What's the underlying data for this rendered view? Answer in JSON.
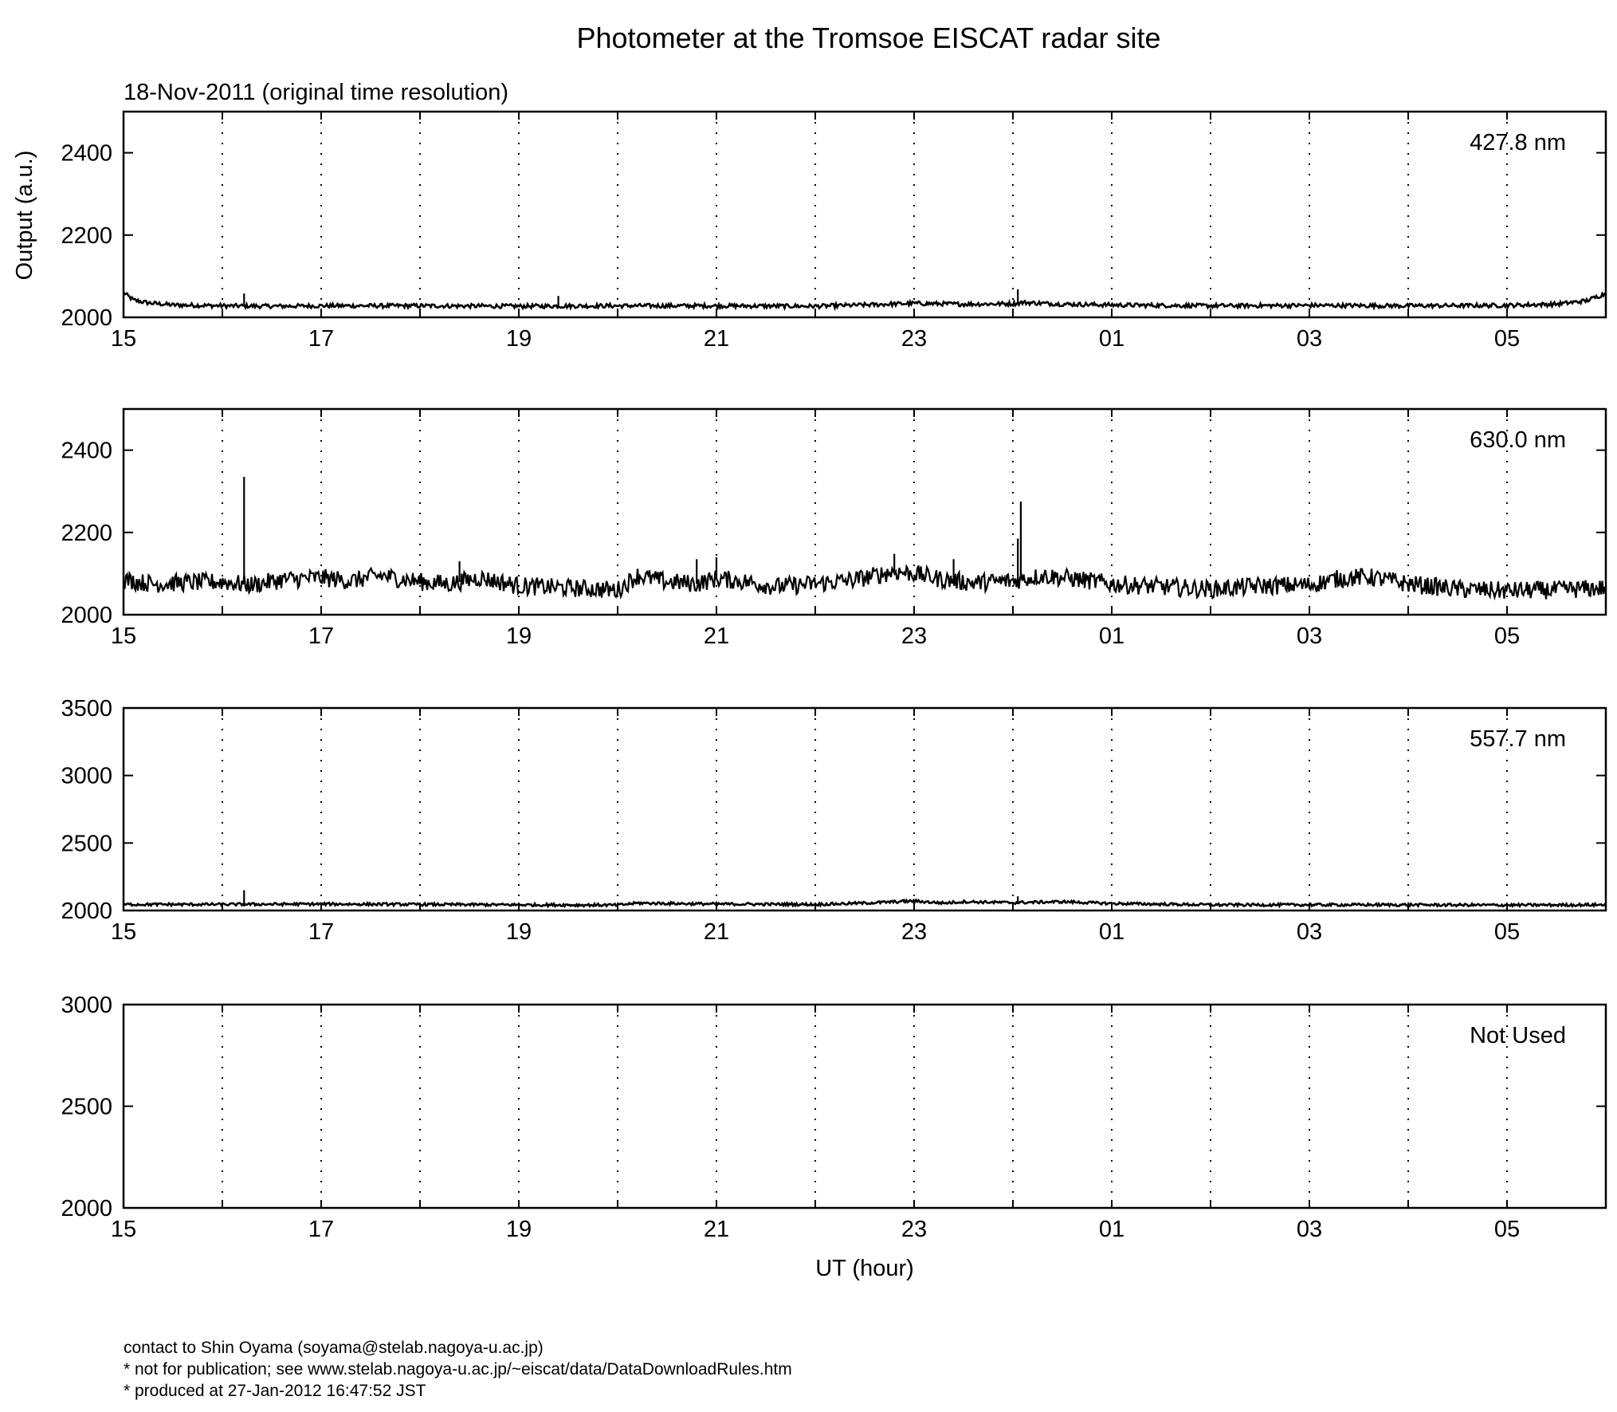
{
  "chart_data": [
    {
      "type": "line",
      "title": "Photometer at the Tromsoe EISCAT radar site",
      "subtitle": "18-Nov-2011 (original time resolution)",
      "xlabel": "",
      "ylabel": "Output (a.u.)",
      "series_label": "427.8 nm",
      "x_tick_labels": [
        "15",
        "17",
        "19",
        "21",
        "23",
        "01",
        "03",
        "05"
      ],
      "x_ticks_hours": [
        15,
        17,
        19,
        21,
        23,
        25,
        27,
        29
      ],
      "xlim_hours": [
        15,
        30
      ],
      "y_ticks": [
        2000,
        2200,
        2400
      ],
      "ylim": [
        2000,
        2500
      ],
      "grid": "vertical dotted, every hour",
      "series": [
        {
          "name": "427.8 nm",
          "x": [
            15.0,
            15.1,
            15.25,
            15.5,
            16.0,
            16.5,
            17.0,
            18.0,
            19.0,
            20.0,
            21.0,
            22.0,
            22.5,
            23.0,
            23.5,
            24.0,
            24.1,
            24.5,
            25.0,
            26.0,
            27.0,
            28.0,
            29.0,
            29.5,
            29.8,
            30.0
          ],
          "y": [
            2060,
            2042,
            2035,
            2030,
            2028,
            2027,
            2028,
            2028,
            2027,
            2028,
            2028,
            2027,
            2030,
            2034,
            2032,
            2033,
            2036,
            2032,
            2030,
            2028,
            2029,
            2028,
            2029,
            2032,
            2040,
            2058
          ],
          "spikes": [
            [
              16.22,
              2058
            ],
            [
              19.4,
              2052
            ],
            [
              24.05,
              2068
            ]
          ]
        }
      ]
    },
    {
      "type": "line",
      "title": "",
      "xlabel": "",
      "ylabel": "",
      "series_label": "630.0 nm",
      "x_tick_labels": [
        "15",
        "17",
        "19",
        "21",
        "23",
        "01",
        "03",
        "05"
      ],
      "x_ticks_hours": [
        15,
        17,
        19,
        21,
        23,
        25,
        27,
        29
      ],
      "xlim_hours": [
        15,
        30
      ],
      "y_ticks": [
        2000,
        2200,
        2400
      ],
      "ylim": [
        2000,
        2500
      ],
      "grid": "vertical dotted, every hour",
      "series": [
        {
          "name": "630.0 nm",
          "x": [
            15.0,
            15.3,
            15.6,
            16.0,
            16.3,
            16.6,
            17.0,
            17.3,
            17.6,
            18.0,
            18.3,
            18.6,
            19.0,
            19.5,
            20.0,
            20.2,
            20.5,
            20.8,
            21.0,
            21.3,
            21.6,
            22.0,
            22.4,
            22.8,
            23.0,
            23.3,
            23.6,
            24.0,
            24.3,
            24.6,
            25.0,
            25.5,
            26.0,
            26.5,
            27.0,
            27.3,
            27.6,
            28.0,
            28.5,
            29.0,
            29.5,
            30.0
          ],
          "y": [
            2085,
            2075,
            2078,
            2080,
            2072,
            2085,
            2090,
            2082,
            2095,
            2080,
            2075,
            2090,
            2070,
            2065,
            2060,
            2095,
            2080,
            2075,
            2088,
            2080,
            2068,
            2075,
            2085,
            2105,
            2100,
            2085,
            2078,
            2082,
            2095,
            2088,
            2075,
            2068,
            2062,
            2070,
            2072,
            2088,
            2092,
            2075,
            2062,
            2058,
            2060,
            2065
          ],
          "spikes": [
            [
              16.22,
              2335
            ],
            [
              24.08,
              2275
            ],
            [
              24.05,
              2185
            ],
            [
              23.4,
              2135
            ],
            [
              18.4,
              2130
            ],
            [
              20.8,
              2135
            ],
            [
              21.0,
              2140
            ],
            [
              22.8,
              2148
            ]
          ]
        }
      ]
    },
    {
      "type": "line",
      "title": "",
      "xlabel": "",
      "ylabel": "",
      "series_label": "557.7 nm",
      "x_tick_labels": [
        "15",
        "17",
        "19",
        "21",
        "23",
        "01",
        "03",
        "05"
      ],
      "x_ticks_hours": [
        15,
        17,
        19,
        21,
        23,
        25,
        27,
        29
      ],
      "xlim_hours": [
        15,
        30
      ],
      "y_ticks": [
        2000,
        2500,
        3000,
        3500
      ],
      "ylim": [
        2000,
        3500
      ],
      "grid": "vertical dotted, every hour",
      "series": [
        {
          "name": "557.7 nm",
          "x": [
            15.0,
            16.0,
            17.0,
            18.0,
            19.0,
            20.0,
            20.2,
            21.0,
            22.0,
            22.5,
            23.0,
            23.3,
            23.5,
            24.0,
            24.5,
            25.0,
            26.0,
            27.0,
            28.0,
            29.0,
            30.0
          ],
          "y": [
            2045,
            2045,
            2048,
            2045,
            2042,
            2040,
            2055,
            2048,
            2045,
            2055,
            2070,
            2055,
            2065,
            2058,
            2065,
            2052,
            2042,
            2042,
            2042,
            2040,
            2042
          ],
          "spikes": [
            [
              16.22,
              2150
            ],
            [
              24.05,
              2105
            ],
            [
              22.9,
              2085
            ]
          ]
        }
      ]
    },
    {
      "type": "line",
      "title": "",
      "xlabel": "UT (hour)",
      "ylabel": "",
      "series_label": "Not Used",
      "x_tick_labels": [
        "15",
        "17",
        "19",
        "21",
        "23",
        "01",
        "03",
        "05"
      ],
      "x_ticks_hours": [
        15,
        17,
        19,
        21,
        23,
        25,
        27,
        29
      ],
      "xlim_hours": [
        15,
        30
      ],
      "y_ticks": [
        2000,
        2500,
        3000
      ],
      "ylim": [
        2000,
        3000
      ],
      "grid": "vertical dotted, every hour",
      "series": []
    }
  ],
  "footer": {
    "line1": "contact to Shin Oyama (soyama@stelab.nagoya-u.ac.jp)",
    "line2": "* not for publication; see www.stelab.nagoya-u.ac.jp/~eiscat/data/DataDownloadRules.htm",
    "line3": "* produced at 27-Jan-2012 16:47:52 JST"
  },
  "colors": {
    "line": "#000000",
    "axes": "#000000",
    "background": "#ffffff"
  }
}
